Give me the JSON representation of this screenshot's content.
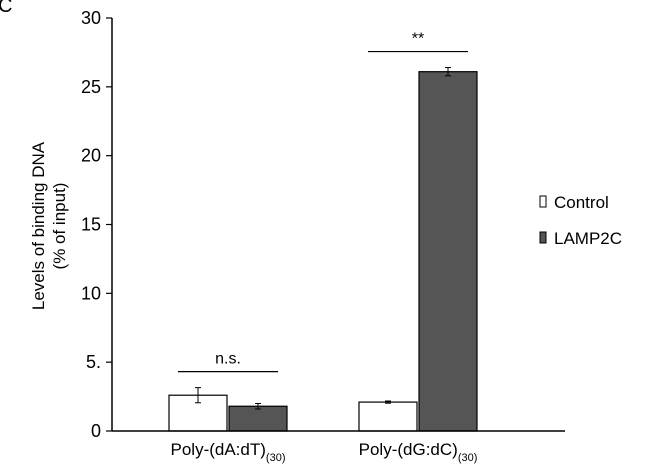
{
  "panel_letter": "C",
  "colors": {
    "control": "#ffffff",
    "lamp2c": "#555555",
    "stroke": "#000000"
  },
  "chart_data": {
    "type": "bar",
    "title": "",
    "categories": [
      {
        "main": "Poly-(dA:dT)",
        "sub": "(30)"
      },
      {
        "main": "Poly-(dG:dC)",
        "sub": "(30)"
      }
    ],
    "ylabel_lines": [
      "Levels of binding DNA",
      "(% of input)"
    ],
    "ylim": [
      0,
      30
    ],
    "yticks": [
      0,
      5,
      10,
      15,
      20,
      25,
      30
    ],
    "ytick_labels": [
      "0",
      "5.",
      "10",
      "15",
      "20",
      "25",
      "30"
    ],
    "series": [
      {
        "name": "Control",
        "values": [
          2.6,
          2.1
        ],
        "errors": [
          0.55,
          0.08
        ]
      },
      {
        "name": "LAMP2C",
        "values": [
          1.8,
          26.1
        ],
        "errors": [
          0.2,
          0.3
        ]
      }
    ],
    "significance": [
      "n.s.",
      "**"
    ],
    "legend_position": "right",
    "grid": false
  }
}
